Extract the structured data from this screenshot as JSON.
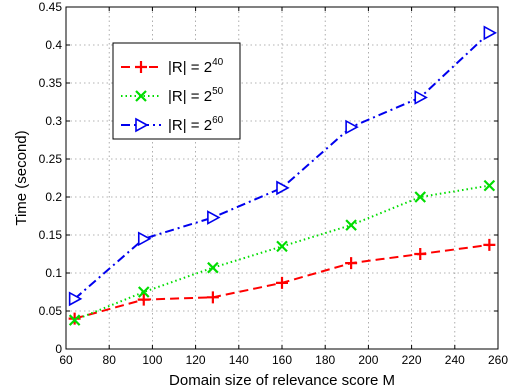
{
  "chart_data": {
    "type": "line",
    "xlabel": "Domain size of relevance score M",
    "ylabel": "Time (second)",
    "xlim": [
      60,
      260
    ],
    "ylim": [
      0,
      0.45
    ],
    "xticks": [
      60,
      80,
      100,
      120,
      140,
      160,
      180,
      200,
      220,
      240,
      260
    ],
    "yticks": [
      0,
      0.05,
      0.1,
      0.15,
      0.2,
      0.25,
      0.3,
      0.35,
      0.4,
      0.45
    ],
    "xtick_labels": [
      "60",
      "80",
      "100",
      "120",
      "140",
      "160",
      "180",
      "200",
      "220",
      "240",
      "260"
    ],
    "ytick_labels": [
      "0",
      "0.05",
      "0.1",
      "0.15",
      "0.2",
      "0.25",
      "0.3",
      "0.35",
      "0.4",
      "0.45"
    ],
    "grid": true,
    "legend_position": "top-left",
    "x": [
      64,
      96,
      128,
      160,
      192,
      224,
      256
    ],
    "series": [
      {
        "legend_base": "|R| = 2",
        "legend_exp": "40",
        "values": [
          0.04,
          0.065,
          0.068,
          0.087,
          0.113,
          0.125,
          0.137
        ],
        "color": "#ff0000",
        "dash": "dashed",
        "marker": "plus"
      },
      {
        "legend_base": "|R| = 2",
        "legend_exp": "50",
        "values": [
          0.038,
          0.075,
          0.107,
          0.135,
          0.163,
          0.2,
          0.215
        ],
        "color": "#00dd00",
        "dash": "dotted",
        "marker": "x"
      },
      {
        "legend_base": "|R| = 2",
        "legend_exp": "60",
        "values": [
          0.066,
          0.145,
          0.173,
          0.212,
          0.292,
          0.331,
          0.416
        ],
        "color": "#0000ee",
        "dash": "dashdot",
        "marker": "triangle-right"
      }
    ]
  }
}
